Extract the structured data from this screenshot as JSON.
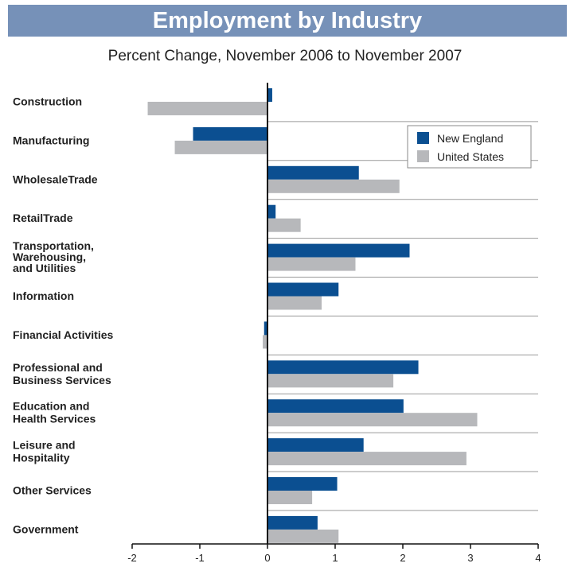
{
  "title": "Employment by Industry",
  "subtitle": "Percent Change, November 2006 to November 2007",
  "chart_data": {
    "type": "bar",
    "orientation": "horizontal",
    "categories": [
      "Construction",
      "Manufacturing",
      "WholesaleTrade",
      "RetailTrade",
      "Transportation,\nWarehousing,\nand Utilities",
      "Information",
      "Financial Activities",
      "Professional and\nBusiness Services",
      "Education and\nHealth Services",
      "Leisure and\nHospitality",
      "Other Services",
      "Government"
    ],
    "series": [
      {
        "name": "New England",
        "color": "#0b4f91",
        "values": [
          0.07,
          -1.1,
          1.35,
          0.12,
          2.1,
          1.05,
          -0.05,
          2.23,
          2.01,
          1.42,
          1.03,
          0.74
        ]
      },
      {
        "name": "United States",
        "color": "#b7b8bb",
        "values": [
          -1.77,
          -1.37,
          1.95,
          0.49,
          1.3,
          0.8,
          -0.07,
          1.86,
          3.1,
          2.94,
          0.66,
          1.05
        ]
      }
    ],
    "xlim": [
      -2,
      4
    ],
    "xticks": [
      "-2",
      "-1",
      "0",
      "1",
      "2",
      "3",
      "4"
    ],
    "legend": "top-right"
  }
}
